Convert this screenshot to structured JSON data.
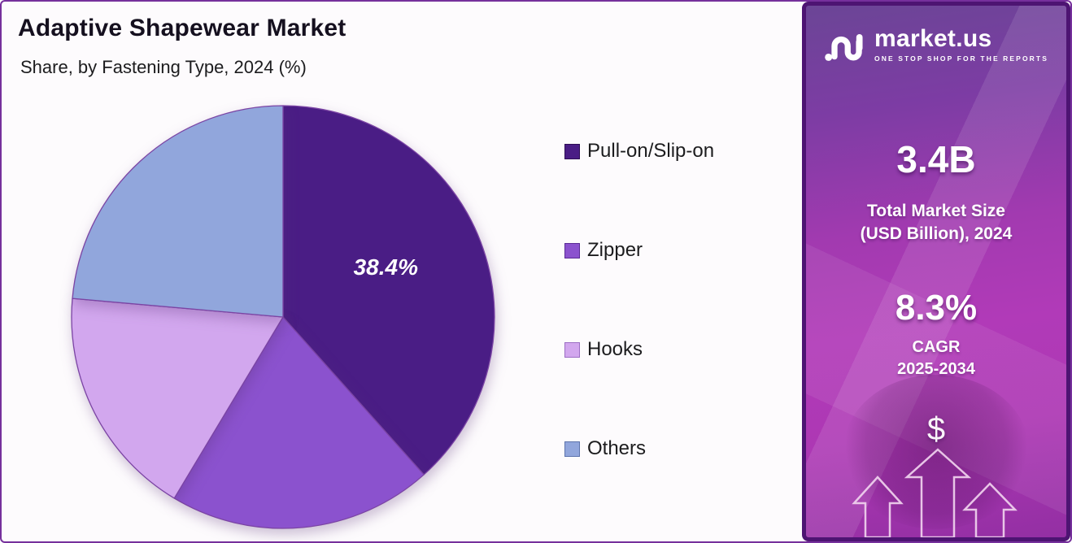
{
  "page": {
    "title": "Adaptive Shapewear Market",
    "subtitle": "Share, by Fastening Type, 2024 (%)"
  },
  "chart_data": {
    "type": "pie",
    "title": "Adaptive Shapewear Market",
    "subtitle": "Share, by Fastening Type, 2024 (%)",
    "unit": "percent",
    "start_angle_deg": 0,
    "direction": "clockwise",
    "labels": [
      "Pull-on/Slip-on",
      "Zipper",
      "Hooks",
      "Others"
    ],
    "values": [
      38.4,
      20.2,
      17.8,
      23.6
    ],
    "labeled_slices": [
      {
        "index": 0,
        "text": "38.4%"
      }
    ],
    "colors": [
      "#4a1d85",
      "#8b52ce",
      "#d2a7ee",
      "#91a6dc"
    ],
    "slice_border_color": "#7b44a4",
    "value_label_color": "#ffffff",
    "legend_position": "right",
    "note": "Only the Pull-on/Slip-on slice shows a printed value (38.4%); the other slice values are estimated from slice angles."
  },
  "legend": {
    "items": [
      {
        "label": "Pull-on/Slip-on",
        "color": "#4a1d85",
        "border": "#2e0d56"
      },
      {
        "label": "Zipper",
        "color": "#8b52ce",
        "border": "#5a2a96"
      },
      {
        "label": "Hooks",
        "color": "#d2a7ee",
        "border": "#9c6ec4"
      },
      {
        "label": "Others",
        "color": "#91a6dc",
        "border": "#5d74ad"
      }
    ]
  },
  "sidebar": {
    "brand": "market.us",
    "tagline": "ONE STOP SHOP FOR THE REPORTS",
    "market_size": {
      "value": "3.4B",
      "label_line1": "Total Market Size",
      "label_line2": "(USD Billion), 2024"
    },
    "cagr": {
      "value": "8.3%",
      "label_line1": "CAGR",
      "label_line2": "2025-2034"
    },
    "dollar_symbol": "$",
    "colors": {
      "gradient_top": "#6b4596",
      "gradient_middle": "#b13ab8",
      "gradient_bottom": "#932fa3",
      "border": "#4d1472",
      "arrow_outline": "#f0d2ee"
    }
  },
  "frame": {
    "border_color": "#76309c",
    "chart_background": "#fdfbfd"
  }
}
